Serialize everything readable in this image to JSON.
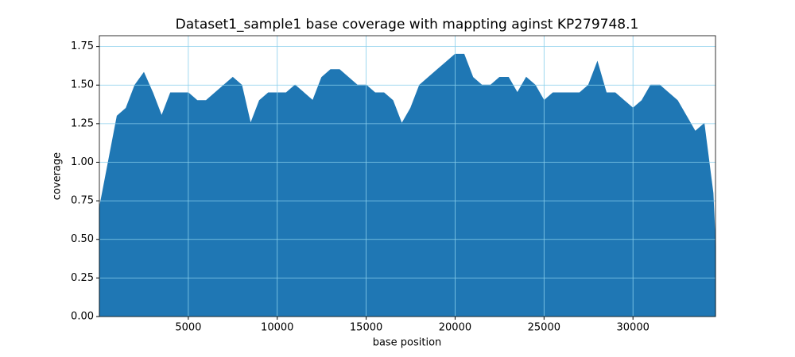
{
  "chart_data": {
    "type": "area",
    "title": "Dataset1_sample1 base coverage with mappting aginst KP279748.1",
    "xlabel": "base position",
    "ylabel": "coverage",
    "series": [
      {
        "color": "#1f77b4",
        "x": [
          0,
          500,
          1000,
          1500,
          2000,
          2500,
          3000,
          3500,
          4000,
          4500,
          5000,
          5500,
          6000,
          6500,
          7000,
          7500,
          8000,
          8500,
          9000,
          9500,
          10000,
          10500,
          11000,
          11500,
          12000,
          12500,
          13000,
          13500,
          14000,
          14500,
          15000,
          15500,
          16000,
          16500,
          17000,
          17500,
          18000,
          18500,
          19000,
          19500,
          20000,
          20500,
          21000,
          21500,
          22000,
          22500,
          23000,
          23500,
          24000,
          24500,
          25000,
          25500,
          26000,
          26500,
          27000,
          27500,
          28000,
          28500,
          29000,
          29500,
          30000,
          30500,
          31000,
          31500,
          32000,
          32500,
          33000,
          33500,
          34000,
          34500,
          34640
        ],
        "values": [
          0.7,
          1.0,
          1.3,
          1.35,
          1.5,
          1.58,
          1.45,
          1.3,
          1.45,
          1.45,
          1.45,
          1.4,
          1.4,
          1.45,
          1.5,
          1.55,
          1.5,
          1.25,
          1.4,
          1.45,
          1.45,
          1.45,
          1.5,
          1.45,
          1.4,
          1.55,
          1.6,
          1.6,
          1.55,
          1.5,
          1.5,
          1.45,
          1.45,
          1.4,
          1.25,
          1.35,
          1.5,
          1.55,
          1.6,
          1.65,
          1.7,
          1.7,
          1.55,
          1.5,
          1.5,
          1.55,
          1.55,
          1.45,
          1.55,
          1.5,
          1.4,
          1.45,
          1.45,
          1.45,
          1.45,
          1.5,
          1.65,
          1.45,
          1.45,
          1.4,
          1.35,
          1.4,
          1.5,
          1.5,
          1.45,
          1.4,
          1.3,
          1.2,
          1.25,
          0.8,
          0.45
        ]
      }
    ],
    "xlim": [
      0,
      34640
    ],
    "ylim": [
      0,
      1.82
    ],
    "xticks": [
      5000,
      10000,
      15000,
      20000,
      25000,
      30000
    ],
    "yticks": [
      {
        "value": 0,
        "label": "0.00"
      },
      {
        "value": 0.25,
        "label": "0.25"
      },
      {
        "value": 0.5,
        "label": "0.50"
      },
      {
        "value": 0.75,
        "label": "0.75"
      },
      {
        "value": 1,
        "label": "1.00"
      },
      {
        "value": 1.25,
        "label": "1.25"
      },
      {
        "value": 1.5,
        "label": "1.50"
      },
      {
        "value": 1.75,
        "label": "1.75"
      }
    ],
    "grid": true,
    "grid_color": "#87ceeb"
  }
}
